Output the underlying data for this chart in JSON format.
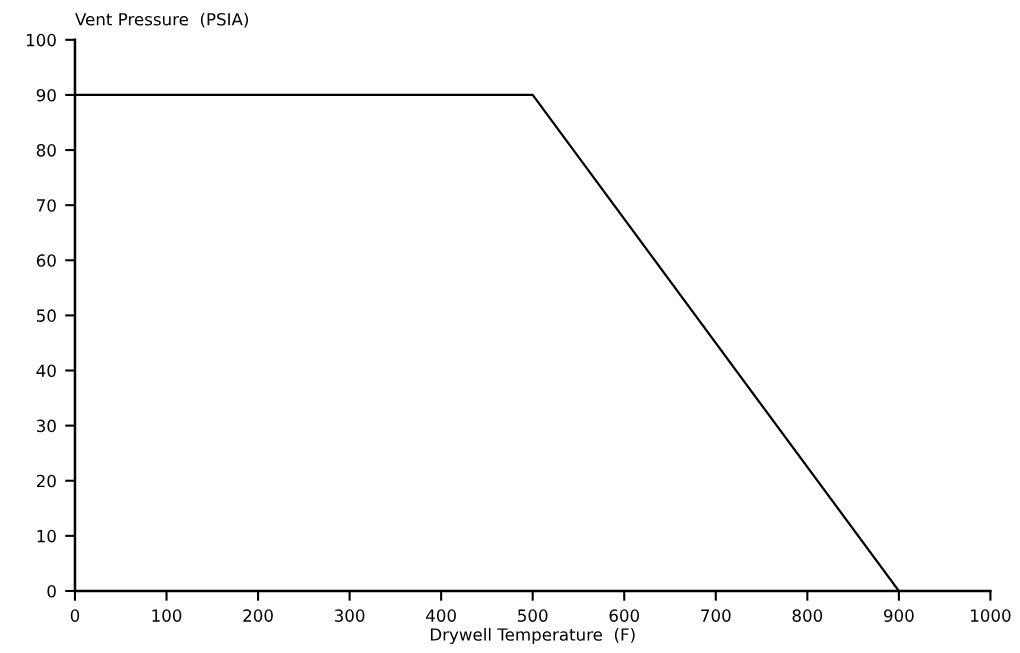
{
  "chart_data": {
    "type": "line",
    "xlabel": "Drywell Temperature  (F)",
    "ylabel": "Vent Pressure  (PSIA)",
    "x": [
      0,
      500,
      900
    ],
    "series": [
      {
        "color": "#000000",
        "values": [
          90,
          90,
          0
        ]
      }
    ],
    "xlim": [
      0,
      1000
    ],
    "xticks": [
      0,
      100,
      200,
      300,
      400,
      500,
      600,
      700,
      800,
      900,
      1000
    ],
    "ylim": [
      0,
      100
    ],
    "yticks": [
      0,
      10,
      20,
      30,
      40,
      50,
      60,
      70,
      80,
      90,
      100
    ],
    "grid": false,
    "legend": false,
    "marker": "none",
    "line_style": "solid"
  }
}
